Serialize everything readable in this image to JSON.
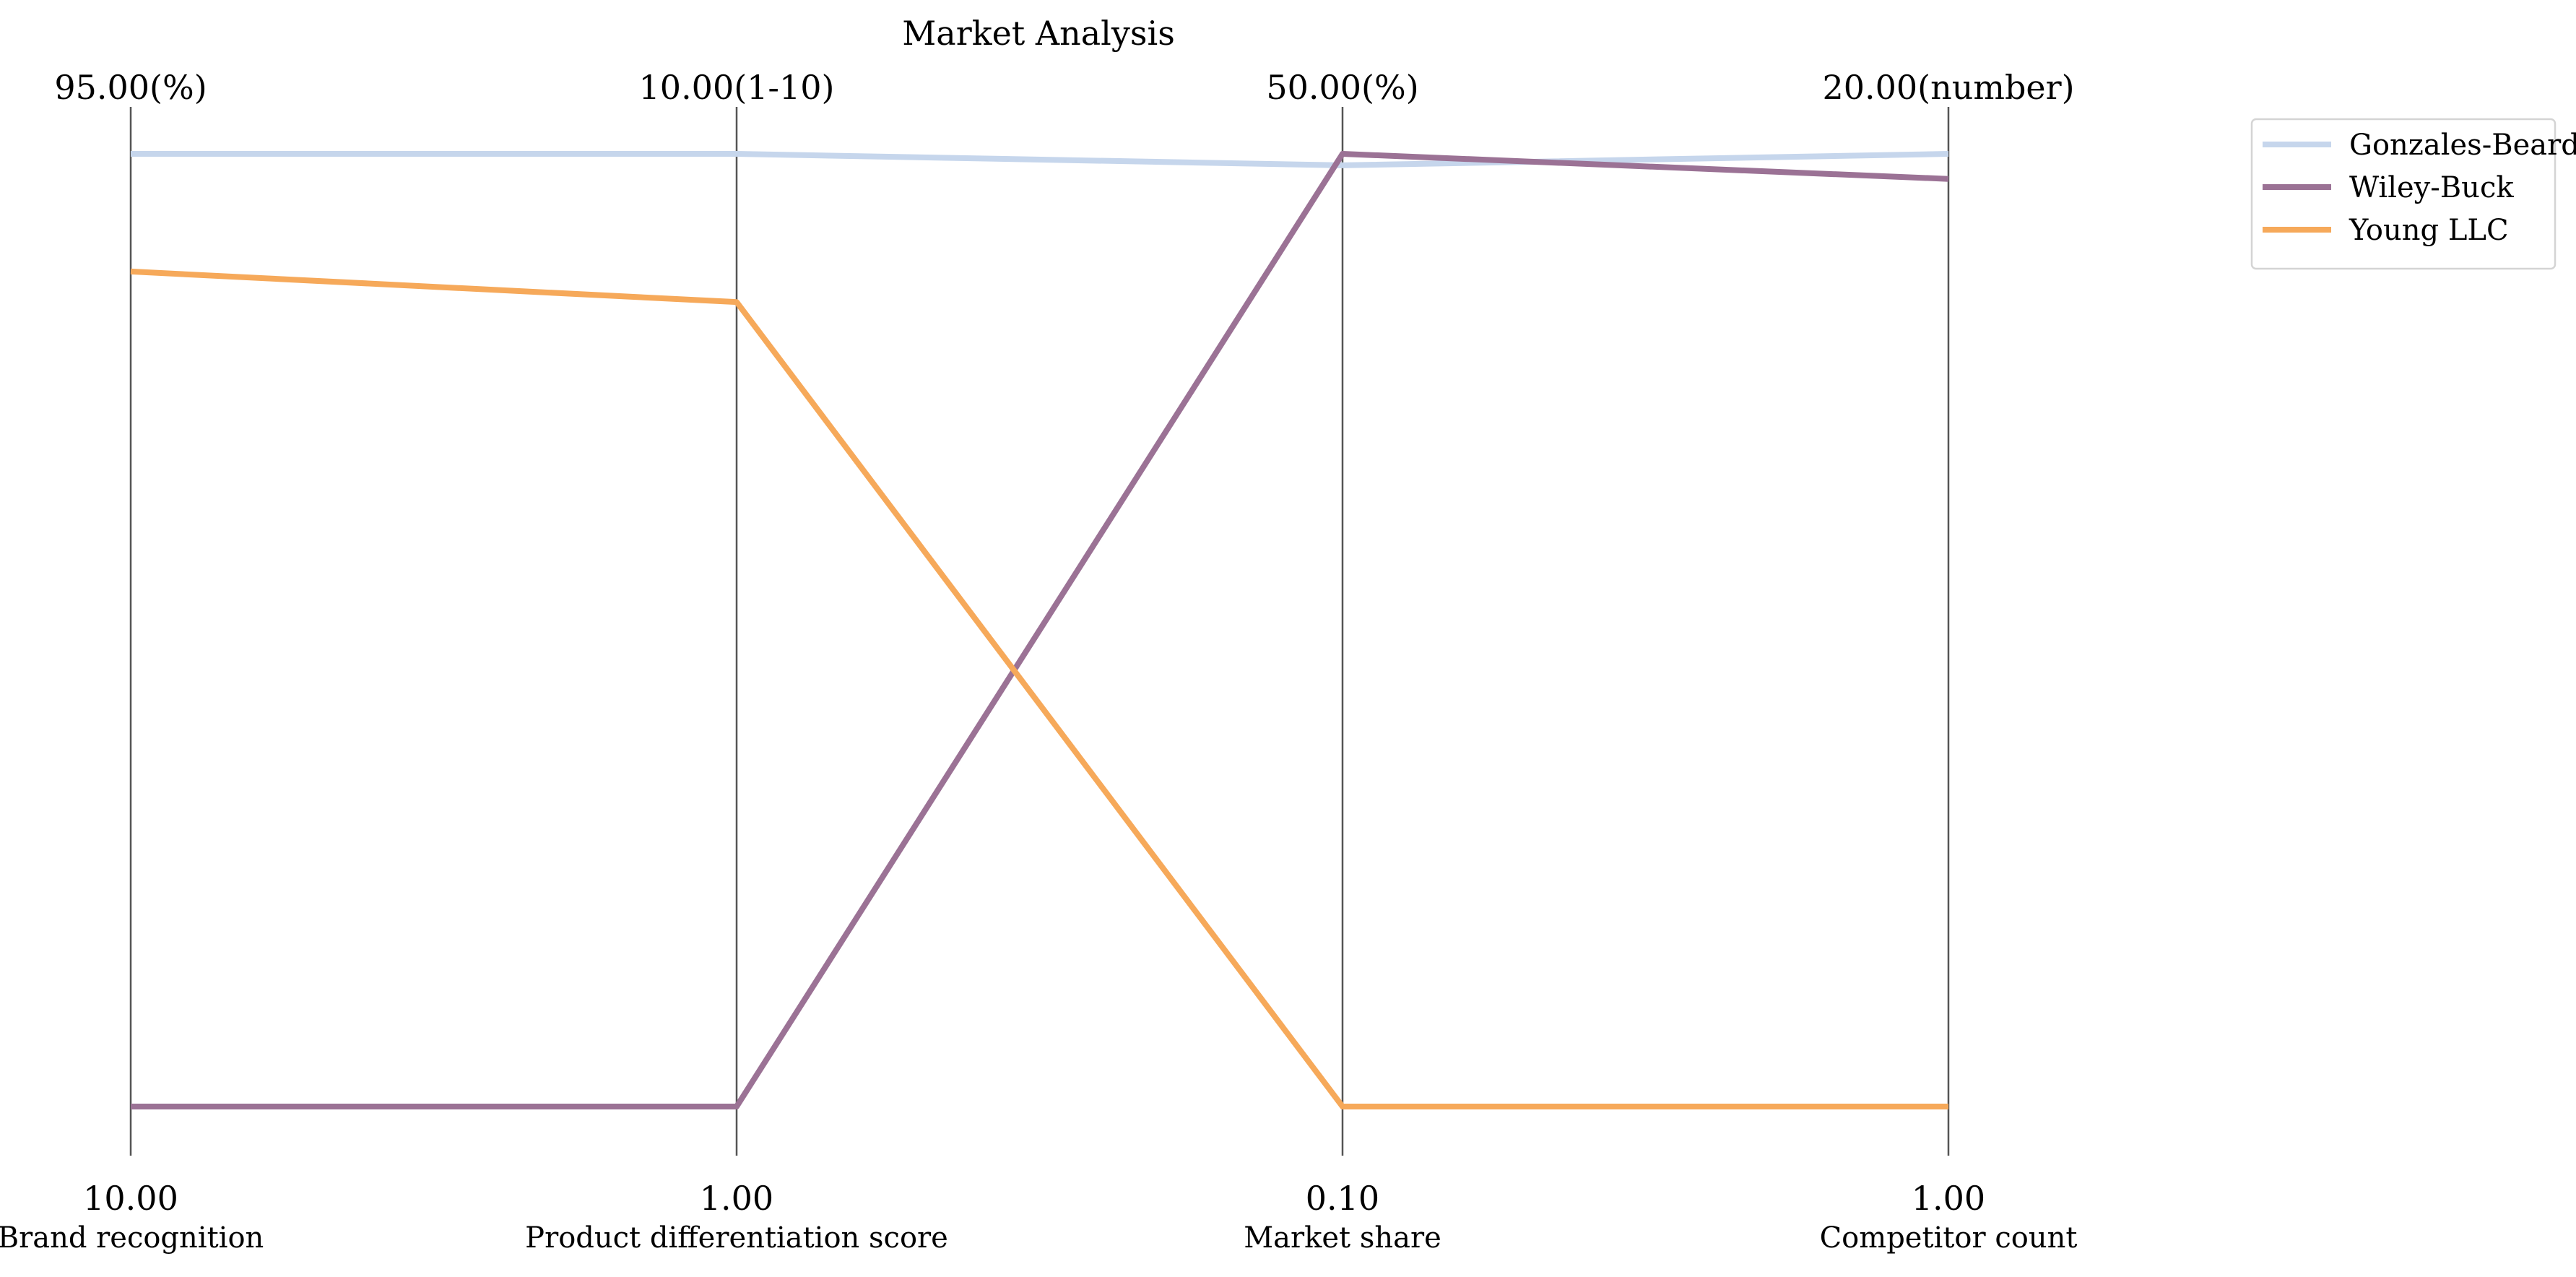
{
  "chart_data": {
    "type": "parallel_coordinates",
    "title": "Market Analysis",
    "axes": [
      {
        "name": "Brand recognition",
        "min": 10,
        "max": 95,
        "min_label": "10.00",
        "max_label": "95.00(%)"
      },
      {
        "name": "Product differentiation score",
        "min": 1,
        "max": 10,
        "min_label": "1.00",
        "max_label": "10.00(1-10)"
      },
      {
        "name": "Market share",
        "min": 0.1,
        "max": 50,
        "min_label": "0.10",
        "max_label": "50.00(%)"
      },
      {
        "name": "Competitor count",
        "min": 1,
        "max": 20,
        "min_label": "1.00",
        "max_label": "20.00(number)"
      }
    ],
    "series": [
      {
        "name": "Gonzales-Beard",
        "color": "#c6d6ec",
        "values": [
          95,
          10,
          49.4,
          20
        ]
      },
      {
        "name": "Wiley-Buck",
        "color": "#9b7295",
        "values": [
          10,
          1,
          50,
          19.5
        ]
      },
      {
        "name": "Young LLC",
        "color": "#f6a95a",
        "values": [
          84.5,
          8.6,
          0.1,
          1
        ]
      }
    ],
    "legend": "top-right",
    "grid": false
  }
}
